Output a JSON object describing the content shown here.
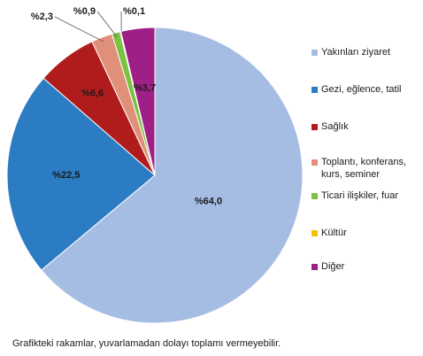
{
  "chart_data": {
    "type": "pie",
    "categories": [
      "Yakınları ziyaret",
      "Gezi, eğlence, tatil",
      "Sağlık",
      "Toplantı, konferans, kurs, seminer",
      "Ticari ilişkiler, fuar",
      "Kültür",
      "Diğer"
    ],
    "values": [
      64.0,
      22.5,
      6.6,
      2.3,
      0.9,
      0.1,
      3.7
    ],
    "value_labels": [
      "%64,0",
      "%22,5",
      "%6,6",
      "%2,3",
      "%0,9",
      "%0,1",
      "%3,7"
    ],
    "colors": [
      "#a6bde3",
      "#2c7cc3",
      "#b01c1c",
      "#e0907a",
      "#7cc242",
      "#f2c200",
      "#9e1f85"
    ],
    "title": "",
    "legend_position": "right",
    "start_angle": "12 o'clock",
    "direction": "clockwise"
  },
  "legend_lines": [
    [
      "Yakınları ziyaret"
    ],
    [
      "Gezi, eğlence, tatil"
    ],
    [
      "Sağlık"
    ],
    [
      "Toplantı, konferans,",
      "kurs, seminer"
    ],
    [
      "Ticari ilişkiler, fuar"
    ],
    [
      "Kültür"
    ],
    [
      "Diğer"
    ]
  ],
  "footnote": "Grafikteki rakamlar, yuvarlamadan dolayı toplamı vermeyebilir."
}
